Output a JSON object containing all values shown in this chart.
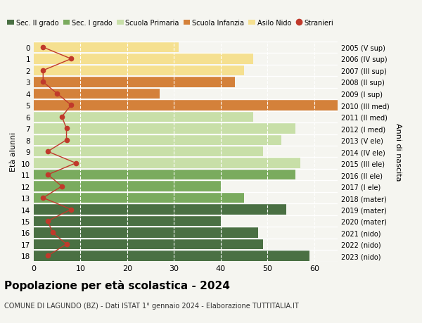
{
  "ages": [
    0,
    1,
    2,
    3,
    4,
    5,
    6,
    7,
    8,
    9,
    10,
    11,
    12,
    13,
    14,
    15,
    16,
    17,
    18
  ],
  "anni_nascita": [
    "2023 (nido)",
    "2022 (nido)",
    "2021 (nido)",
    "2020 (mater)",
    "2019 (mater)",
    "2018 (mater)",
    "2017 (I ele)",
    "2016 (II ele)",
    "2015 (III ele)",
    "2014 (IV ele)",
    "2013 (V ele)",
    "2012 (I med)",
    "2011 (II med)",
    "2010 (III med)",
    "2009 (I sup)",
    "2008 (II sup)",
    "2007 (III sup)",
    "2006 (IV sup)",
    "2005 (V sup)"
  ],
  "bar_values": [
    31,
    47,
    45,
    43,
    27,
    65,
    47,
    56,
    53,
    49,
    57,
    56,
    40,
    45,
    54,
    40,
    48,
    49,
    59
  ],
  "stranieri": [
    2,
    8,
    2,
    2,
    5,
    8,
    6,
    7,
    7,
    3,
    9,
    3,
    6,
    2,
    8,
    3,
    4,
    7,
    3
  ],
  "bar_colors": [
    "#f5e090",
    "#f5e090",
    "#f5e090",
    "#d4813a",
    "#d4813a",
    "#d4813a",
    "#c8dfa8",
    "#c8dfa8",
    "#c8dfa8",
    "#c8dfa8",
    "#c8dfa8",
    "#7aab5e",
    "#7aab5e",
    "#7aab5e",
    "#4a7043",
    "#4a7043",
    "#4a7043",
    "#4a7043",
    "#4a7043"
  ],
  "legend_labels": [
    "Sec. II grado",
    "Sec. I grado",
    "Scuola Primaria",
    "Scuola Infanzia",
    "Asilo Nido",
    "Stranieri"
  ],
  "legend_colors": [
    "#4a7043",
    "#7aab5e",
    "#c8dfa8",
    "#d4813a",
    "#f5e090",
    "#c0392b"
  ],
  "stranieri_color": "#c0392b",
  "title": "Popolazione per età scolastica - 2024",
  "subtitle": "COMUNE DI LAGUNDO (BZ) - Dati ISTAT 1° gennaio 2024 - Elaborazione TUTTITALIA.IT",
  "ylabel_left": "Età alunni",
  "ylabel_right": "Anni di nascita",
  "xlim": [
    0,
    65
  ],
  "bg_color": "#f5f5f0",
  "grid_color": "#ffffff"
}
